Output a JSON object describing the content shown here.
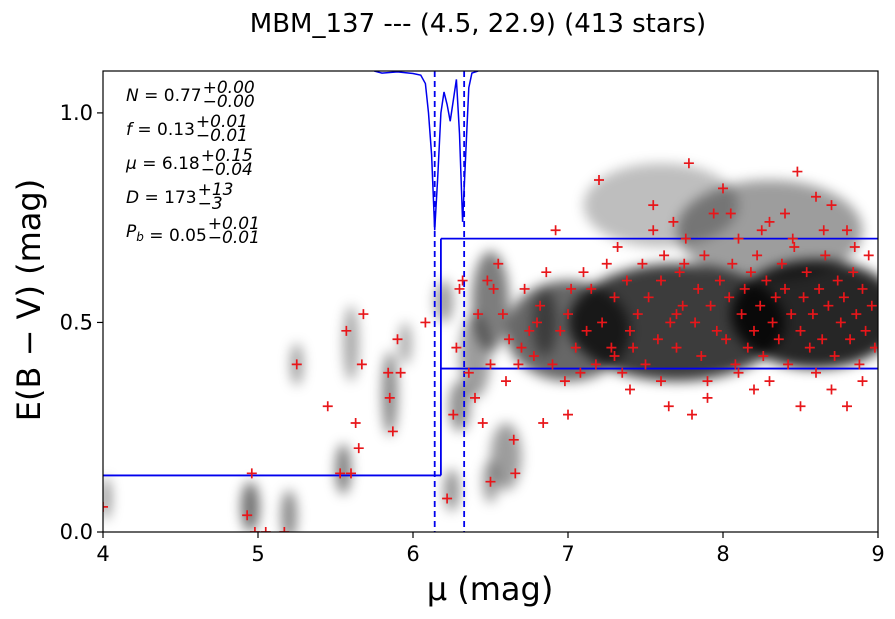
{
  "chart_data": {
    "type": "scatter",
    "title": "MBM_137 --- (4.5, 22.9) (413 stars)",
    "xlabel": "μ (mag)",
    "ylabel": "E(B − V) (mag)",
    "xlim": [
      4,
      9
    ],
    "ylim": [
      0,
      1.1
    ],
    "xticks": [
      4,
      5,
      6,
      7,
      8,
      9
    ],
    "xtick_labels": [
      "4",
      "5",
      "6",
      "7",
      "8",
      "9"
    ],
    "yticks": [
      0.0,
      0.5,
      1.0
    ],
    "ytick_labels": [
      "0.0",
      "0.5",
      "1.0"
    ],
    "grid": false,
    "colors": {
      "points": "#e8161a",
      "model": "#0000ee",
      "density": "#000000"
    },
    "annotations": [
      {
        "symbol": "N",
        "value": "0.77",
        "plus": "+0.00",
        "minus": "−0.00"
      },
      {
        "symbol": "f",
        "value": "0.13",
        "plus": "+0.01",
        "minus": "−0.01"
      },
      {
        "symbol": "μ",
        "value": "6.18",
        "plus": "+0.15",
        "minus": "−0.04"
      },
      {
        "symbol": "D",
        "value": "173",
        "plus": "+13",
        "minus": "−3"
      },
      {
        "symbol": "P_b",
        "value": "0.05",
        "plus": "+0.01",
        "minus": "−0.01"
      }
    ],
    "model_steps": [
      {
        "x": [
          4.0,
          6.18
        ],
        "y": 0.135
      },
      {
        "x": [
          6.18,
          9.0
        ],
        "y": 0.7
      },
      {
        "x": [
          6.18,
          9.0
        ],
        "y": 0.39
      }
    ],
    "distance_markers": [
      6.14,
      6.33
    ],
    "density_clumps": [
      [
        8.6,
        0.52,
        0.55,
        0.13,
        1.0
      ],
      [
        7.7,
        0.5,
        0.7,
        0.14,
        0.9
      ],
      [
        7.0,
        0.48,
        0.4,
        0.12,
        0.7
      ],
      [
        8.3,
        0.72,
        0.6,
        0.12,
        0.45
      ],
      [
        7.6,
        0.78,
        0.5,
        0.1,
        0.3
      ],
      [
        6.5,
        0.55,
        0.12,
        0.12,
        0.6
      ],
      [
        6.3,
        0.3,
        0.07,
        0.06,
        0.5
      ],
      [
        6.4,
        0.42,
        0.1,
        0.1,
        0.45
      ],
      [
        6.6,
        0.18,
        0.1,
        0.08,
        0.45
      ],
      [
        6.85,
        0.5,
        0.08,
        0.08,
        0.5
      ],
      [
        6.2,
        0.55,
        0.06,
        0.05,
        0.45
      ],
      [
        5.6,
        0.45,
        0.05,
        0.09,
        0.4
      ],
      [
        5.55,
        0.15,
        0.05,
        0.06,
        0.6
      ],
      [
        5.85,
        0.33,
        0.05,
        0.1,
        0.55
      ],
      [
        5.95,
        0.45,
        0.04,
        0.05,
        0.4
      ],
      [
        5.25,
        0.4,
        0.04,
        0.05,
        0.45
      ],
      [
        4.95,
        0.06,
        0.06,
        0.06,
        0.65
      ],
      [
        5.2,
        0.04,
        0.05,
        0.06,
        0.55
      ],
      [
        6.25,
        0.1,
        0.05,
        0.05,
        0.5
      ],
      [
        6.5,
        0.12,
        0.05,
        0.05,
        0.45
      ],
      [
        4.02,
        0.08,
        0.03,
        0.05,
        0.55
      ]
    ],
    "points": [
      [
        4.93,
        0.04
      ],
      [
        4.96,
        0.14
      ],
      [
        4.98,
        0.0
      ],
      [
        5.05,
        0.0
      ],
      [
        5.17,
        0.0
      ],
      [
        5.25,
        0.4
      ],
      [
        5.45,
        0.3
      ],
      [
        5.53,
        0.14
      ],
      [
        5.57,
        0.48
      ],
      [
        5.6,
        0.14
      ],
      [
        5.63,
        0.26
      ],
      [
        5.65,
        0.2
      ],
      [
        5.67,
        0.4
      ],
      [
        5.68,
        0.52
      ],
      [
        5.84,
        0.38
      ],
      [
        5.85,
        0.32
      ],
      [
        5.87,
        0.24
      ],
      [
        5.9,
        0.46
      ],
      [
        5.92,
        0.38
      ],
      [
        6.08,
        0.5
      ],
      [
        6.22,
        0.08
      ],
      [
        6.26,
        0.28
      ],
      [
        6.28,
        0.44
      ],
      [
        6.3,
        0.58
      ],
      [
        6.32,
        0.6
      ],
      [
        6.36,
        0.38
      ],
      [
        6.4,
        0.32
      ],
      [
        6.42,
        0.52
      ],
      [
        6.45,
        0.26
      ],
      [
        6.48,
        0.6
      ],
      [
        6.5,
        0.4
      ],
      [
        6.5,
        0.12
      ],
      [
        6.52,
        0.58
      ],
      [
        6.55,
        0.64
      ],
      [
        6.58,
        0.52
      ],
      [
        6.6,
        0.36
      ],
      [
        6.62,
        0.46
      ],
      [
        6.65,
        0.22
      ],
      [
        6.66,
        0.14
      ],
      [
        6.68,
        0.4
      ],
      [
        6.7,
        0.44
      ],
      [
        6.72,
        0.58
      ],
      [
        6.75,
        0.48
      ],
      [
        6.78,
        0.42
      ],
      [
        6.8,
        0.5
      ],
      [
        6.82,
        0.54
      ],
      [
        6.84,
        0.26
      ],
      [
        6.86,
        0.62
      ],
      [
        6.9,
        0.4
      ],
      [
        6.92,
        0.72
      ],
      [
        6.95,
        0.48
      ],
      [
        6.98,
        0.36
      ],
      [
        7.0,
        0.52
      ],
      [
        7.02,
        0.58
      ],
      [
        7.05,
        0.44
      ],
      [
        7.08,
        0.38
      ],
      [
        7.1,
        0.62
      ],
      [
        7.12,
        0.48
      ],
      [
        7.15,
        0.58
      ],
      [
        7.18,
        0.4
      ],
      [
        7.2,
        0.84
      ],
      [
        7.22,
        0.5
      ],
      [
        7.25,
        0.64
      ],
      [
        7.28,
        0.44
      ],
      [
        7.3,
        0.56
      ],
      [
        7.32,
        0.68
      ],
      [
        7.35,
        0.38
      ],
      [
        7.38,
        0.6
      ],
      [
        7.4,
        0.48
      ],
      [
        7.42,
        0.44
      ],
      [
        7.45,
        0.52
      ],
      [
        7.48,
        0.64
      ],
      [
        7.5,
        0.4
      ],
      [
        7.52,
        0.56
      ],
      [
        7.55,
        0.78
      ],
      [
        7.58,
        0.46
      ],
      [
        7.6,
        0.6
      ],
      [
        7.62,
        0.66
      ],
      [
        7.65,
        0.3
      ],
      [
        7.66,
        0.5
      ],
      [
        7.68,
        0.74
      ],
      [
        7.7,
        0.44
      ],
      [
        7.72,
        0.62
      ],
      [
        7.74,
        0.54
      ],
      [
        7.76,
        0.7
      ],
      [
        7.78,
        0.88
      ],
      [
        7.8,
        0.28
      ],
      [
        7.82,
        0.5
      ],
      [
        7.84,
        0.58
      ],
      [
        7.86,
        0.42
      ],
      [
        7.88,
        0.66
      ],
      [
        7.9,
        0.36
      ],
      [
        7.92,
        0.54
      ],
      [
        7.94,
        0.76
      ],
      [
        7.96,
        0.48
      ],
      [
        7.98,
        0.6
      ],
      [
        8.0,
        0.82
      ],
      [
        8.02,
        0.46
      ],
      [
        8.04,
        0.56
      ],
      [
        8.06,
        0.64
      ],
      [
        8.08,
        0.4
      ],
      [
        8.1,
        0.7
      ],
      [
        8.12,
        0.52
      ],
      [
        8.14,
        0.58
      ],
      [
        8.16,
        0.44
      ],
      [
        8.18,
        0.62
      ],
      [
        8.2,
        0.48
      ],
      [
        8.22,
        0.66
      ],
      [
        8.24,
        0.54
      ],
      [
        8.26,
        0.42
      ],
      [
        8.28,
        0.6
      ],
      [
        8.3,
        0.74
      ],
      [
        8.32,
        0.5
      ],
      [
        8.34,
        0.56
      ],
      [
        8.36,
        0.46
      ],
      [
        8.38,
        0.64
      ],
      [
        8.4,
        0.58
      ],
      [
        8.42,
        0.4
      ],
      [
        8.44,
        0.52
      ],
      [
        8.46,
        0.68
      ],
      [
        8.48,
        0.86
      ],
      [
        8.5,
        0.3
      ],
      [
        8.5,
        0.48
      ],
      [
        8.52,
        0.56
      ],
      [
        8.54,
        0.62
      ],
      [
        8.56,
        0.44
      ],
      [
        8.58,
        0.52
      ],
      [
        8.6,
        0.8
      ],
      [
        8.62,
        0.58
      ],
      [
        8.64,
        0.46
      ],
      [
        8.66,
        0.66
      ],
      [
        8.68,
        0.54
      ],
      [
        8.7,
        0.78
      ],
      [
        8.72,
        0.42
      ],
      [
        8.74,
        0.6
      ],
      [
        8.76,
        0.5
      ],
      [
        8.78,
        0.56
      ],
      [
        8.8,
        0.72
      ],
      [
        8.82,
        0.46
      ],
      [
        8.84,
        0.62
      ],
      [
        8.86,
        0.52
      ],
      [
        8.88,
        0.4
      ],
      [
        8.9,
        0.58
      ],
      [
        8.92,
        0.48
      ],
      [
        8.94,
        0.66
      ],
      [
        8.96,
        0.54
      ],
      [
        8.98,
        0.44
      ],
      [
        8.3,
        0.36
      ],
      [
        8.1,
        0.38
      ],
      [
        8.7,
        0.34
      ],
      [
        7.4,
        0.34
      ],
      [
        7.6,
        0.36
      ],
      [
        7.0,
        0.28
      ],
      [
        7.9,
        0.32
      ],
      [
        8.9,
        0.36
      ],
      [
        8.6,
        0.38
      ],
      [
        8.2,
        0.34
      ],
      [
        8.8,
        0.3
      ],
      [
        7.3,
        0.42
      ],
      [
        7.7,
        0.52
      ],
      [
        8.45,
        0.7
      ],
      [
        8.65,
        0.72
      ],
      [
        8.85,
        0.68
      ],
      [
        8.05,
        0.76
      ],
      [
        8.25,
        0.72
      ],
      [
        7.55,
        0.72
      ],
      [
        7.75,
        0.64
      ],
      [
        8.4,
        0.76
      ],
      [
        4.0,
        0.06
      ]
    ]
  }
}
